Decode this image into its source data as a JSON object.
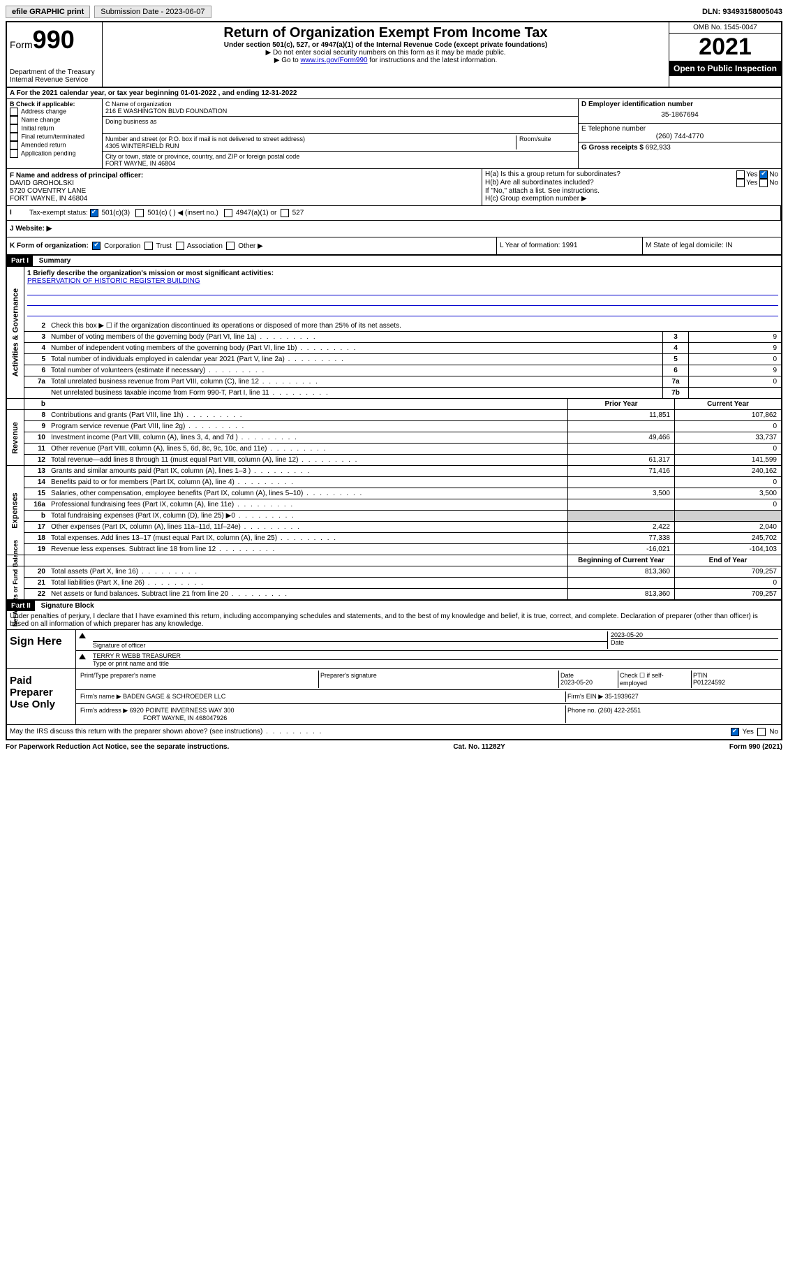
{
  "topbar": {
    "efile": "efile GRAPHIC print",
    "submission_label": "Submission Date - 2023-06-07",
    "dln": "DLN: 93493158005043"
  },
  "header": {
    "form_label": "Form",
    "form_number": "990",
    "dept": "Department of the Treasury",
    "irs": "Internal Revenue Service",
    "title": "Return of Organization Exempt From Income Tax",
    "sub": "Under section 501(c), 527, or 4947(a)(1) of the Internal Revenue Code (except private foundations)",
    "note1": "▶ Do not enter social security numbers on this form as it may be made public.",
    "note2_pre": "▶ Go to ",
    "note2_link": "www.irs.gov/Form990",
    "note2_post": " for instructions and the latest information.",
    "omb": "OMB No. 1545-0047",
    "year": "2021",
    "inspection": "Open to Public Inspection"
  },
  "rowA": "A For the 2021 calendar year, or tax year beginning 01-01-2022   , and ending 12-31-2022",
  "colB": {
    "label": "B Check if applicable:",
    "items": [
      "Address change",
      "Name change",
      "Initial return",
      "Final return/terminated",
      "Amended return",
      "Application pending"
    ]
  },
  "colC": {
    "name_label": "C Name of organization",
    "name": "216 E WASHINGTON BLVD FOUNDATION",
    "dba_label": "Doing business as",
    "addr_label": "Number and street (or P.O. box if mail is not delivered to street address)",
    "room_label": "Room/suite",
    "addr": "4305 WINTERFIELD RUN",
    "city_label": "City or town, state or province, country, and ZIP or foreign postal code",
    "city": "FORT WAYNE, IN  46804"
  },
  "colDE": {
    "d_label": "D Employer identification number",
    "ein": "35-1867694",
    "e_label": "E Telephone number",
    "phone": "(260) 744-4770",
    "g_label": "G Gross receipts $",
    "g_val": "692,933"
  },
  "rowF": {
    "label": "F  Name and address of principal officer:",
    "name": "DAVID GROHOLSKI",
    "addr1": "5720 COVENTRY LANE",
    "addr2": "FORT WAYNE, IN  46804"
  },
  "rowH": {
    "ha": "H(a)  Is this a group return for subordinates?",
    "hb": "H(b)  Are all subordinates included?",
    "hb_note": "If \"No,\" attach a list. See instructions.",
    "hc": "H(c)  Group exemption number ▶",
    "yes": "Yes",
    "no": "No"
  },
  "rowI": {
    "label": "Tax-exempt status:",
    "opt1": "501(c)(3)",
    "opt2": "501(c) (   ) ◀ (insert no.)",
    "opt3": "4947(a)(1) or",
    "opt4": "527"
  },
  "rowJ": "J   Website: ▶",
  "rowK": "K Form of organization:",
  "rowK_opts": [
    "Corporation",
    "Trust",
    "Association",
    "Other ▶"
  ],
  "rowL": "L Year of formation: 1991",
  "rowM": "M State of legal domicile: IN",
  "part1": {
    "header": "Part I",
    "title": "Summary"
  },
  "mission": {
    "label": "1   Briefly describe the organization's mission or most significant activities:",
    "text": "PRESERVATION OF HISTORIC REGISTER BUILDING"
  },
  "governance": {
    "tab": "Activities & Governance",
    "line2": "Check this box ▶ ☐  if the organization discontinued its operations or disposed of more than 25% of its net assets.",
    "lines": [
      {
        "n": "3",
        "t": "Number of voting members of the governing body (Part VI, line 1a)",
        "bn": "3",
        "bv": "9"
      },
      {
        "n": "4",
        "t": "Number of independent voting members of the governing body (Part VI, line 1b)",
        "bn": "4",
        "bv": "9"
      },
      {
        "n": "5",
        "t": "Total number of individuals employed in calendar year 2021 (Part V, line 2a)",
        "bn": "5",
        "bv": "0"
      },
      {
        "n": "6",
        "t": "Total number of volunteers (estimate if necessary)",
        "bn": "6",
        "bv": "9"
      },
      {
        "n": "7a",
        "t": "Total unrelated business revenue from Part VIII, column (C), line 12",
        "bn": "7a",
        "bv": "0"
      },
      {
        "n": "",
        "t": "Net unrelated business taxable income from Form 990-T, Part I, line 11",
        "bn": "7b",
        "bv": ""
      }
    ]
  },
  "pycy_header": {
    "b": "b",
    "py": "Prior Year",
    "cy": "Current Year"
  },
  "revenue": {
    "tab": "Revenue",
    "lines": [
      {
        "n": "8",
        "t": "Contributions and grants (Part VIII, line 1h)",
        "py": "11,851",
        "cy": "107,862"
      },
      {
        "n": "9",
        "t": "Program service revenue (Part VIII, line 2g)",
        "py": "",
        "cy": "0"
      },
      {
        "n": "10",
        "t": "Investment income (Part VIII, column (A), lines 3, 4, and 7d )",
        "py": "49,466",
        "cy": "33,737"
      },
      {
        "n": "11",
        "t": "Other revenue (Part VIII, column (A), lines 5, 6d, 8c, 9c, 10c, and 11e)",
        "py": "",
        "cy": "0"
      },
      {
        "n": "12",
        "t": "Total revenue—add lines 8 through 11 (must equal Part VIII, column (A), line 12)",
        "py": "61,317",
        "cy": "141,599"
      }
    ]
  },
  "expenses": {
    "tab": "Expenses",
    "lines": [
      {
        "n": "13",
        "t": "Grants and similar amounts paid (Part IX, column (A), lines 1–3 )",
        "py": "71,416",
        "cy": "240,162"
      },
      {
        "n": "14",
        "t": "Benefits paid to or for members (Part IX, column (A), line 4)",
        "py": "",
        "cy": "0"
      },
      {
        "n": "15",
        "t": "Salaries, other compensation, employee benefits (Part IX, column (A), lines 5–10)",
        "py": "3,500",
        "cy": "3,500"
      },
      {
        "n": "16a",
        "t": "Professional fundraising fees (Part IX, column (A), line 11e)",
        "py": "",
        "cy": "0"
      },
      {
        "n": "b",
        "t": "Total fundraising expenses (Part IX, column (D), line 25) ▶0",
        "py": "GRAY",
        "cy": "GRAY"
      },
      {
        "n": "17",
        "t": "Other expenses (Part IX, column (A), lines 11a–11d, 11f–24e)",
        "py": "2,422",
        "cy": "2,040"
      },
      {
        "n": "18",
        "t": "Total expenses. Add lines 13–17 (must equal Part IX, column (A), line 25)",
        "py": "77,338",
        "cy": "245,702"
      },
      {
        "n": "19",
        "t": "Revenue less expenses. Subtract line 18 from line 12",
        "py": "-16,021",
        "cy": "-104,103"
      }
    ]
  },
  "netassets_header": {
    "py": "Beginning of Current Year",
    "cy": "End of Year"
  },
  "netassets": {
    "tab": "Net Assets or Fund Balances",
    "lines": [
      {
        "n": "20",
        "t": "Total assets (Part X, line 16)",
        "py": "813,360",
        "cy": "709,257"
      },
      {
        "n": "21",
        "t": "Total liabilities (Part X, line 26)",
        "py": "",
        "cy": "0"
      },
      {
        "n": "22",
        "t": "Net assets or fund balances. Subtract line 21 from line 20",
        "py": "813,360",
        "cy": "709,257"
      }
    ]
  },
  "part2": {
    "header": "Part II",
    "title": "Signature Block"
  },
  "penalties": "Under penalties of perjury, I declare that I have examined this return, including accompanying schedules and statements, and to the best of my knowledge and belief, it is true, correct, and complete. Declaration of preparer (other than officer) is based on all information of which preparer has any knowledge.",
  "sign_here": {
    "label": "Sign Here",
    "sig_of_officer": "Signature of officer",
    "date_label": "Date",
    "date": "2023-05-20",
    "name_title": "TERRY R WEBB TREASURER",
    "type_label": "Type or print name and title"
  },
  "paid_preparer": {
    "label": "Paid Preparer Use Only",
    "col1": "Print/Type preparer's name",
    "col2": "Preparer's signature",
    "col3_label": "Date",
    "col3": "2023-05-20",
    "col4": "Check ☐ if self-employed",
    "col5_label": "PTIN",
    "col5": "P01224592",
    "firm_name_label": "Firm's name    ▶",
    "firm_name": "BADEN GAGE & SCHROEDER LLC",
    "firm_ein_label": "Firm's EIN ▶",
    "firm_ein": "35-1939627",
    "firm_addr_label": "Firm's address ▶",
    "firm_addr1": "6920 POINTE INVERNESS WAY 300",
    "firm_addr2": "FORT WAYNE, IN  468047926",
    "phone_label": "Phone no.",
    "phone": "(260) 422-2551"
  },
  "may_discuss": "May the IRS discuss this return with the preparer shown above? (see instructions)",
  "footer": {
    "left": "For Paperwork Reduction Act Notice, see the separate instructions.",
    "mid": "Cat. No. 11282Y",
    "right_pre": "Form ",
    "right_num": "990",
    "right_post": " (2021)"
  }
}
